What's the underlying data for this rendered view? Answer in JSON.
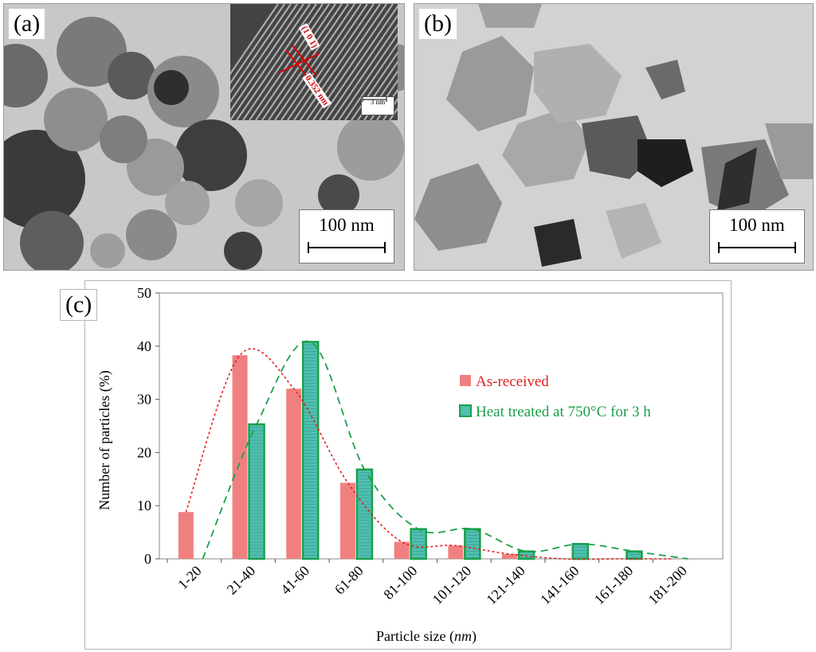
{
  "panel_a": {
    "label": "(a)",
    "scale_bar": "100 nm",
    "inset": {
      "scale_bar": "3 nm",
      "plane": "(1 0 1)",
      "d_spacing": "0.352 nm"
    }
  },
  "panel_b": {
    "label": "(b)",
    "scale_bar": "100 nm"
  },
  "panel_c": {
    "label": "(c)"
  },
  "colors": {
    "as_received_fill": "#f08080",
    "heat_fill": "#4fbfb0",
    "heat_border": "#1aa04a",
    "as_received_curve": "#e32020",
    "heat_curve": "#1aa04a",
    "legend_as_received_text": "#e32020",
    "legend_heat_text": "#1aa04a"
  },
  "chart_data": {
    "type": "bar",
    "title": "",
    "xlabel_prefix": "Particle size (",
    "xlabel_unit": "nm",
    "xlabel_suffix": ")",
    "ylabel": "Number of particles (%)",
    "ylim": [
      0,
      50
    ],
    "yticks": [
      "0",
      "10",
      "20",
      "30",
      "40",
      "50"
    ],
    "categories": [
      "1-20",
      "21-40",
      "41-60",
      "61-80",
      "81-100",
      "101-120",
      "121-140",
      "141-160",
      "161-180",
      "181-200"
    ],
    "series": [
      {
        "name": "As-received",
        "values": [
          8.8,
          38.3,
          32.0,
          14.3,
          3.2,
          2.5,
          0.9,
          0.0,
          0.0,
          0.0
        ]
      },
      {
        "name": "Heat treated at 750°C for 3 h",
        "values": [
          0.0,
          25.3,
          40.8,
          16.8,
          5.6,
          5.6,
          1.4,
          2.8,
          1.4,
          0.0
        ]
      }
    ],
    "legend": [
      "As-received",
      "Heat treated at 750°C for 3 h"
    ],
    "legend_position": "right",
    "trend_lines": "smoothed fit curves (dotted red for As-received, dashed green for heat treated)"
  }
}
